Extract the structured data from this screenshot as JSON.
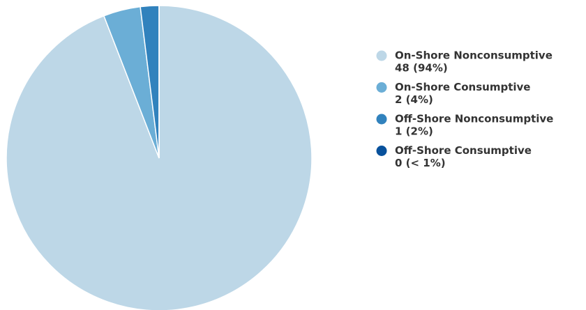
{
  "chart_data": {
    "type": "pie",
    "categories": [
      "On-Shore Nonconsumptive",
      "On-Shore Consumptive",
      "Off-Shore Nonconsumptive",
      "Off-Shore Consumptive"
    ],
    "values": [
      48,
      2,
      1,
      0
    ],
    "value_labels": [
      "48 (94%)",
      "2 (4%)",
      "1 (2%)",
      "0 (< 1%)"
    ],
    "colors": [
      "#bdd7e7",
      "#6baed6",
      "#3182bd",
      "#08519c"
    ],
    "legend": "right"
  }
}
